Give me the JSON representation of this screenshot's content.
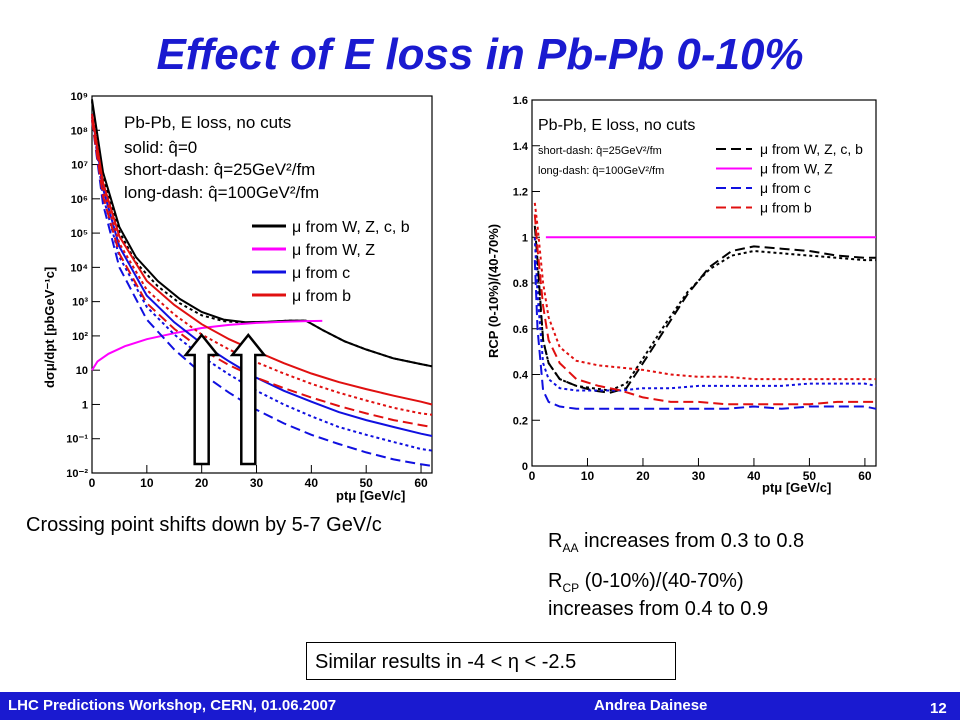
{
  "slide": {
    "title": "Effect of E loss in Pb-Pb 0-10%",
    "left_caption": "Crossing point shifts down by 5-7 GeV/c",
    "raa_symbol": "R",
    "raa_sub": "AA",
    "raa_text": " increases from 0.3 to 0.8",
    "rcp_symbol": "R",
    "rcp_sub": "CP",
    "rcp_text": " (0-10%)/(40-70%)",
    "rcp_text2": "increases from 0.4 to 0.9",
    "box_text": "Similar results in -4 < η < -2.5",
    "footer_left": "LHC Predictions Workshop, CERN, 01.06.2007",
    "footer_author": "Andrea Dainese",
    "page_number": "12"
  },
  "colors": {
    "title": "#1a1ad0",
    "footer": "#1a1ad0",
    "wzcb": "#000000",
    "wz": "#ff00ff",
    "c": "#1010e0",
    "b": "#e01010"
  },
  "chart_data": [
    {
      "type": "line",
      "ylabel": "dσμ/dpt [pbGeV⁻¹c]",
      "xlabel": "ptμ [GeV/c]",
      "xlim": [
        0,
        62
      ],
      "ylog": true,
      "ylim": [
        0.01,
        1000000000
      ],
      "xticks": [
        "0",
        "10",
        "20",
        "30",
        "40",
        "50",
        "60"
      ],
      "yticks": [
        "10⁻²",
        "10⁻¹",
        "1",
        "10",
        "10²",
        "10³",
        "10⁴",
        "10⁵",
        "10⁶",
        "10⁷",
        "10⁸",
        "10⁹"
      ],
      "annotations": [
        "Pb-Pb, E loss, no cuts",
        "solid: q̂=0",
        "short-dash: q̂=25GeV²/fm",
        "long-dash: q̂=100GeV²/fm"
      ],
      "legend": [
        "μ from W, Z, c, b",
        "μ from W, Z",
        "μ from c",
        "μ from b"
      ],
      "arrows_x": [
        20,
        28.5
      ],
      "series": [
        {
          "name": "μ from W, Z, c, b",
          "style": "solid",
          "x": [
            0,
            2,
            5,
            8,
            12,
            16,
            20,
            24,
            28,
            32,
            36,
            39,
            42,
            46,
            50,
            55,
            60,
            62
          ],
          "y": [
            800000000,
            6000000,
            150000,
            20000,
            4000,
            1200,
            500,
            300,
            250,
            260,
            280,
            280,
            150,
            70,
            40,
            22,
            15,
            13
          ]
        },
        {
          "name": "μ from W, Z, c, b",
          "style": "short-dash",
          "x": [
            0,
            2,
            5,
            8,
            12,
            16,
            20,
            24,
            28,
            32,
            36,
            39,
            42,
            46,
            50,
            55,
            60,
            62
          ],
          "y": [
            700000000,
            4500000,
            110000,
            14000,
            2800,
            900,
            400,
            270,
            240,
            255,
            280,
            280,
            150,
            70,
            40,
            22,
            15,
            13
          ]
        },
        {
          "name": "μ from W, Z",
          "style": "solid",
          "x": [
            0,
            1,
            3,
            6,
            10,
            15,
            20,
            25,
            30,
            35,
            39,
            42
          ],
          "y": [
            10,
            18,
            30,
            50,
            80,
            120,
            170,
            210,
            240,
            260,
            270,
            275
          ]
        },
        {
          "name": "μ from c",
          "style": "solid",
          "x": [
            0,
            2,
            5,
            10,
            15,
            20,
            25,
            30,
            35,
            40,
            45,
            50,
            55,
            60,
            62
          ],
          "y": [
            300000000,
            2000000,
            40000,
            1500,
            250,
            60,
            18,
            6,
            2.5,
            1.2,
            0.6,
            0.35,
            0.22,
            0.14,
            0.12
          ]
        },
        {
          "name": "μ from c",
          "style": "short-dash",
          "x": [
            0,
            2,
            5,
            10,
            15,
            20,
            25,
            30,
            35,
            40,
            45,
            50,
            55,
            60,
            62
          ],
          "y": [
            250000000,
            1200000,
            20000,
            700,
            110,
            25,
            7.5,
            2.5,
            1,
            0.45,
            0.22,
            0.13,
            0.08,
            0.05,
            0.045
          ]
        },
        {
          "name": "μ from c",
          "style": "long-dash",
          "x": [
            0,
            2,
            5,
            10,
            15,
            20,
            25,
            30,
            35,
            40,
            45,
            50,
            55,
            60,
            62
          ],
          "y": [
            200000000,
            700000,
            10000,
            300,
            40,
            8,
            2.2,
            0.7,
            0.28,
            0.13,
            0.07,
            0.04,
            0.025,
            0.018,
            0.016
          ]
        },
        {
          "name": "μ from b",
          "style": "solid",
          "x": [
            0,
            2,
            5,
            10,
            15,
            20,
            25,
            30,
            35,
            40,
            45,
            50,
            55,
            60,
            62
          ],
          "y": [
            300000000,
            3000000,
            80000,
            4000,
            800,
            220,
            80,
            35,
            16,
            8,
            4.5,
            2.8,
            1.8,
            1.2,
            1
          ]
        },
        {
          "name": "μ from b",
          "style": "short-dash",
          "x": [
            0,
            2,
            5,
            10,
            15,
            20,
            25,
            30,
            35,
            40,
            45,
            50,
            55,
            60,
            62
          ],
          "y": [
            250000000,
            2000000,
            50000,
            2200,
            420,
            110,
            40,
            17,
            8,
            4,
            2.2,
            1.3,
            0.8,
            0.55,
            0.5
          ]
        },
        {
          "name": "μ from b",
          "style": "long-dash",
          "x": [
            0,
            2,
            5,
            10,
            15,
            20,
            25,
            30,
            35,
            40,
            45,
            50,
            55,
            60,
            62
          ],
          "y": [
            200000000,
            1200000,
            25000,
            900,
            160,
            40,
            14,
            6,
            3,
            1.6,
            0.9,
            0.55,
            0.35,
            0.25,
            0.22
          ]
        }
      ]
    },
    {
      "type": "line",
      "ylabel": "RCP (0-10%)/(40-70%)",
      "xlabel": "ptμ [GeV/c]",
      "xlim": [
        0,
        62
      ],
      "ylim": [
        0,
        1.6
      ],
      "xticks": [
        "0",
        "10",
        "20",
        "30",
        "40",
        "50",
        "60"
      ],
      "yticks": [
        "0",
        "0.2",
        "0.4",
        "0.6",
        "0.8",
        "1",
        "1.2",
        "1.4",
        "1.6"
      ],
      "annotations": [
        "Pb-Pb, E loss, no cuts",
        "short-dash: q̂=25GeV²/fm",
        "long-dash: q̂=100GeV²/fm"
      ],
      "legend": [
        "μ from W, Z, c, b",
        "μ from W, Z",
        "μ from c",
        "μ from b"
      ],
      "series": [
        {
          "name": "μ from W, Z, c, b",
          "style": "long-dash",
          "x": [
            0.5,
            1,
            2,
            3,
            5,
            8,
            11,
            14,
            17,
            20,
            24,
            28,
            32,
            36,
            40,
            45,
            50,
            55,
            60,
            62
          ],
          "y": [
            1.05,
            0.9,
            0.55,
            0.45,
            0.38,
            0.35,
            0.33,
            0.32,
            0.34,
            0.45,
            0.6,
            0.75,
            0.87,
            0.94,
            0.96,
            0.95,
            0.94,
            0.92,
            0.91,
            0.91
          ]
        },
        {
          "name": "μ from W, Z, c, b",
          "style": "short-dash",
          "x": [
            0.5,
            1,
            2,
            3,
            5,
            8,
            11,
            14,
            17,
            20,
            24,
            28,
            32,
            36,
            40,
            45,
            50,
            55,
            60,
            62
          ],
          "y": [
            1.0,
            0.85,
            0.55,
            0.45,
            0.38,
            0.35,
            0.34,
            0.33,
            0.36,
            0.47,
            0.62,
            0.76,
            0.86,
            0.92,
            0.94,
            0.93,
            0.92,
            0.91,
            0.9,
            0.9
          ]
        },
        {
          "name": "μ from W, Z",
          "style": "solid",
          "x": [
            2.5,
            62
          ],
          "y": [
            1.0,
            1.0
          ]
        },
        {
          "name": "μ from c",
          "style": "long-dash",
          "x": [
            0.5,
            1,
            2,
            3,
            5,
            8,
            12,
            16,
            20,
            25,
            30,
            35,
            40,
            45,
            50,
            55,
            60,
            62
          ],
          "y": [
            0.9,
            0.6,
            0.33,
            0.28,
            0.26,
            0.25,
            0.25,
            0.25,
            0.25,
            0.25,
            0.25,
            0.25,
            0.26,
            0.25,
            0.26,
            0.26,
            0.26,
            0.25
          ]
        },
        {
          "name": "μ from c",
          "style": "short-dash",
          "x": [
            0.5,
            1,
            2,
            3,
            5,
            8,
            12,
            16,
            20,
            25,
            30,
            35,
            40,
            45,
            50,
            55,
            60,
            62
          ],
          "y": [
            1.0,
            0.75,
            0.45,
            0.38,
            0.34,
            0.33,
            0.33,
            0.33,
            0.34,
            0.34,
            0.35,
            0.35,
            0.35,
            0.35,
            0.36,
            0.36,
            0.36,
            0.35
          ]
        },
        {
          "name": "μ from b",
          "style": "long-dash",
          "x": [
            0.5,
            1,
            2,
            3,
            5,
            8,
            12,
            16,
            20,
            25,
            30,
            35,
            40,
            45,
            50,
            55,
            60,
            62
          ],
          "y": [
            1.1,
            0.95,
            0.7,
            0.55,
            0.45,
            0.38,
            0.35,
            0.33,
            0.3,
            0.28,
            0.28,
            0.27,
            0.27,
            0.27,
            0.27,
            0.28,
            0.28,
            0.28
          ]
        },
        {
          "name": "μ from b",
          "style": "short-dash",
          "x": [
            0.5,
            1,
            2,
            3,
            5,
            8,
            12,
            16,
            20,
            25,
            30,
            35,
            40,
            45,
            50,
            55,
            60,
            62
          ],
          "y": [
            1.15,
            1.05,
            0.8,
            0.65,
            0.52,
            0.46,
            0.44,
            0.43,
            0.42,
            0.4,
            0.39,
            0.39,
            0.38,
            0.38,
            0.38,
            0.38,
            0.38,
            0.38
          ]
        }
      ]
    }
  ]
}
